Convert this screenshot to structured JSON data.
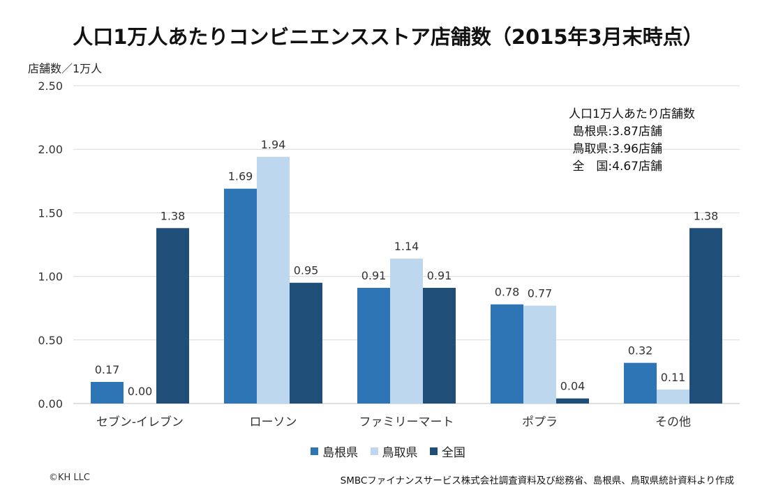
{
  "title": "人口1万人あたりコンビニエンスストア店舗数（2015年3月末時点）",
  "copyright": "©KH LLC",
  "source": "SMBCファイナンスサービス株式会社調査資料及び総務省、島根県、鳥取県統計資料より作成",
  "annotation": {
    "heading": "人口1万人あたり店舗数",
    "lines": [
      " 島根県:3.87店舗",
      " 鳥取県:3.96店舗",
      " 全　国:4.67店舗"
    ]
  },
  "chart_data": {
    "type": "bar",
    "title": "人口1万人あたりコンビニエンスストア店舗数（2015年3月末時点）",
    "ylabel": "店舗数／1万人",
    "xlabel": "",
    "ylim": [
      0,
      2.5
    ],
    "yticks": [
      "0.00",
      "0.50",
      "1.00",
      "1.50",
      "2.00",
      "2.50"
    ],
    "grid": true,
    "legend_position": "bottom",
    "categories": [
      "セブン-イレブン",
      "ローソン",
      "ファミリーマート",
      "ポプラ",
      "その他"
    ],
    "series": [
      {
        "name": "島根県",
        "color": "#2e75b6",
        "values": [
          0.17,
          1.69,
          0.91,
          0.78,
          0.32
        ],
        "labels": [
          "0.17",
          "1.69",
          "0.91",
          "0.78",
          "0.32"
        ]
      },
      {
        "name": "鳥取県",
        "color": "#bdd7ee",
        "values": [
          0.0,
          1.94,
          1.14,
          0.77,
          0.11
        ],
        "labels": [
          "0.00",
          "1.94",
          "1.14",
          "0.77",
          "0.11"
        ]
      },
      {
        "name": "全国",
        "color": "#1f4e79",
        "values": [
          1.38,
          0.95,
          0.91,
          0.04,
          1.38
        ],
        "labels": [
          "1.38",
          "0.95",
          "0.91",
          "0.04",
          "1.38"
        ]
      }
    ]
  }
}
